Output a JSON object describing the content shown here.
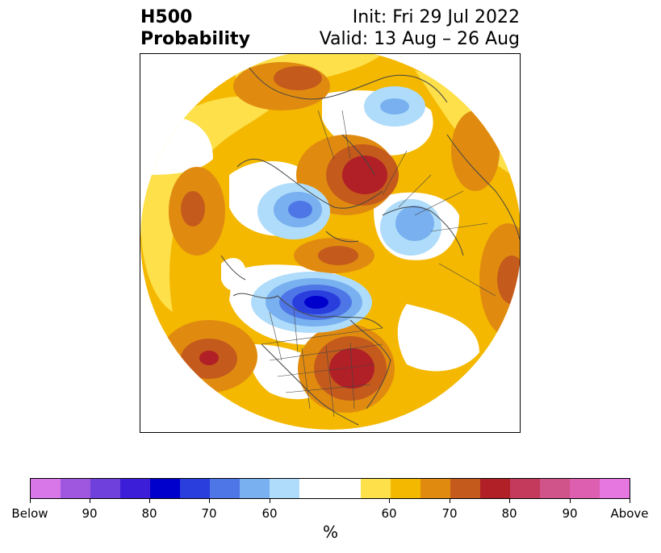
{
  "title": {
    "left_line1": "H500",
    "left_line2": "Probability",
    "right_line1": "Init: Fri 29 Jul 2022",
    "right_line2": "Valid: 13 Aug – 26 Aug"
  },
  "map": {
    "projection": "north-polar-stereographic",
    "features": [
      {
        "name": "above-anomaly-east-us",
        "category": "above",
        "level": "80"
      },
      {
        "name": "above-anomaly-north-pacific",
        "category": "above",
        "level": "80"
      },
      {
        "name": "above-anomaly-siberia-arctic",
        "category": "above",
        "level": "80"
      },
      {
        "name": "above-anomaly-kara-sea",
        "category": "above",
        "level": "70"
      },
      {
        "name": "below-anomaly-hudson-bay",
        "category": "below",
        "level": "80"
      },
      {
        "name": "below-anomaly-scandinavia",
        "category": "below",
        "level": "60"
      },
      {
        "name": "below-anomaly-barents-north",
        "category": "below",
        "level": "60"
      },
      {
        "name": "below-anomaly-alaska-yukon",
        "category": "below",
        "level": "60"
      }
    ]
  },
  "colorbar": {
    "unit": "%",
    "segments": [
      {
        "color": "#d877e8"
      },
      {
        "color": "#a057e0"
      },
      {
        "color": "#7040dd"
      },
      {
        "color": "#3c1ed8"
      },
      {
        "color": "#0000cd"
      },
      {
        "color": "#2a3ede"
      },
      {
        "color": "#4f76e6"
      },
      {
        "color": "#78b0f0"
      },
      {
        "color": "#afdcfa"
      },
      {
        "color": "#ffffff"
      },
      {
        "color": "#ffffff"
      },
      {
        "color": "#fde04a"
      },
      {
        "color": "#f4b800"
      },
      {
        "color": "#e08b10"
      },
      {
        "color": "#c45a1c"
      },
      {
        "color": "#b02026"
      },
      {
        "color": "#c33a5c"
      },
      {
        "color": "#d0538a"
      },
      {
        "color": "#dc5fb0"
      },
      {
        "color": "#e676e0"
      }
    ],
    "ticks": [
      "Below",
      "90",
      "80",
      "70",
      "60",
      "60",
      "70",
      "80",
      "90",
      "Above"
    ]
  }
}
